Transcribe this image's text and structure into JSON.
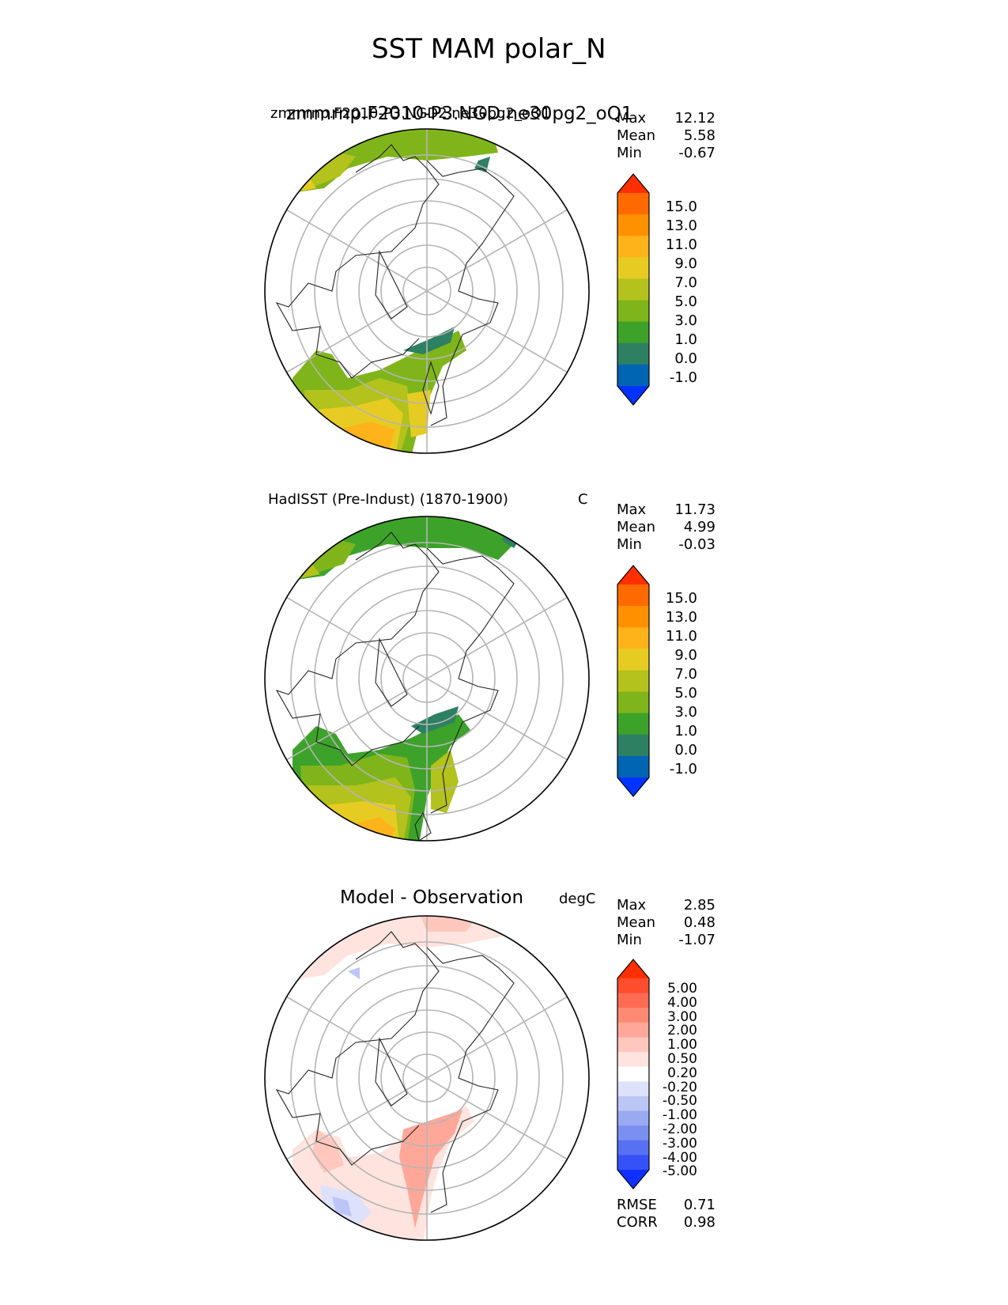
{
  "figure": {
    "title": "SST MAM polar_N"
  },
  "panels": [
    {
      "id": "test",
      "left_title": "zmmrnp.F2010-P3.NGD2.ne30pg2_oQ1",
      "left_title_overlay": "zmmrnp.F2010-P3.NGD.ne30pg2_oQ1",
      "units": "",
      "stats": [
        {
          "label": "Max",
          "value": "12.12"
        },
        {
          "label": "Mean",
          "value": "5.58"
        },
        {
          "label": "Min",
          "value": "-0.67"
        }
      ],
      "colorbar": {
        "labels": [
          "15.0",
          "13.0",
          "11.0",
          "9.0",
          "7.0",
          "5.0",
          "3.0",
          "1.0",
          "0.0",
          "-1.0"
        ],
        "colors": [
          "#ff2f00",
          "#ff6a00",
          "#ff9000",
          "#ffb31a",
          "#e6cc22",
          "#b3c21c",
          "#7fb51a",
          "#3da22a",
          "#2e8063",
          "#0066b3",
          "#0033ff"
        ]
      }
    },
    {
      "id": "reference",
      "left_title": "HadISST (Pre-Indust) (1870-1900)",
      "units": "C",
      "stats": [
        {
          "label": "Max",
          "value": "11.73"
        },
        {
          "label": "Mean",
          "value": "4.99"
        },
        {
          "label": "Min",
          "value": "-0.03"
        }
      ],
      "colorbar": {
        "labels": [
          "15.0",
          "13.0",
          "11.0",
          "9.0",
          "7.0",
          "5.0",
          "3.0",
          "1.0",
          "0.0",
          "-1.0"
        ],
        "colors": [
          "#ff2f00",
          "#ff6a00",
          "#ff9000",
          "#ffb31a",
          "#e6cc22",
          "#b3c21c",
          "#7fb51a",
          "#3da22a",
          "#2e8063",
          "#0066b3",
          "#0033ff"
        ]
      }
    },
    {
      "id": "difference",
      "center_title": "Model - Observation",
      "units": "degC",
      "stats": [
        {
          "label": "Max",
          "value": "2.85"
        },
        {
          "label": "Mean",
          "value": "0.48"
        },
        {
          "label": "Min",
          "value": "-1.07"
        }
      ],
      "colorbar": {
        "labels": [
          "5.00",
          "4.00",
          "3.00",
          "2.00",
          "1.00",
          "0.50",
          "0.20",
          "-0.20",
          "-0.50",
          "-1.00",
          "-2.00",
          "-3.00",
          "-4.00",
          "-5.00"
        ],
        "colors": [
          "#ff2f00",
          "#ff4d2e",
          "#ff6b52",
          "#ff8a73",
          "#ffa899",
          "#ffc7bd",
          "#ffe3de",
          "#ffffff",
          "#dde2fa",
          "#bcc6f5",
          "#9aaaf2",
          "#7a8ff0",
          "#5870f2",
          "#3552f7",
          "#0f2fff"
        ]
      },
      "metrics": [
        {
          "label": "RMSE",
          "value": "0.71"
        },
        {
          "label": "CORR",
          "value": "0.98"
        }
      ]
    }
  ],
  "chart_data": {
    "type": "heatmap",
    "projection": "north polar stereographic",
    "variable": "SST",
    "season": "MAM",
    "region": "polar_N",
    "panels": [
      {
        "name": "zmmrnp.F2010-P3.NGD2.ne30pg2_oQ1",
        "max": 12.12,
        "mean": 5.58,
        "min": -0.67,
        "levels": [
          -1.0,
          0.0,
          1.0,
          3.0,
          5.0,
          7.0,
          9.0,
          11.0,
          13.0,
          15.0
        ]
      },
      {
        "name": "HadISST (Pre-Indust) (1870-1900)",
        "units": "C",
        "max": 11.73,
        "mean": 4.99,
        "min": -0.03,
        "levels": [
          -1.0,
          0.0,
          1.0,
          3.0,
          5.0,
          7.0,
          9.0,
          11.0,
          13.0,
          15.0
        ]
      },
      {
        "name": "Model - Observation",
        "units": "degC",
        "max": 2.85,
        "mean": 0.48,
        "min": -1.07,
        "rmse": 0.71,
        "corr": 0.98,
        "levels": [
          -5.0,
          -4.0,
          -3.0,
          -2.0,
          -1.0,
          -0.5,
          -0.2,
          0.2,
          0.5,
          1.0,
          2.0,
          3.0,
          4.0,
          5.0
        ]
      }
    ],
    "grid": true
  }
}
